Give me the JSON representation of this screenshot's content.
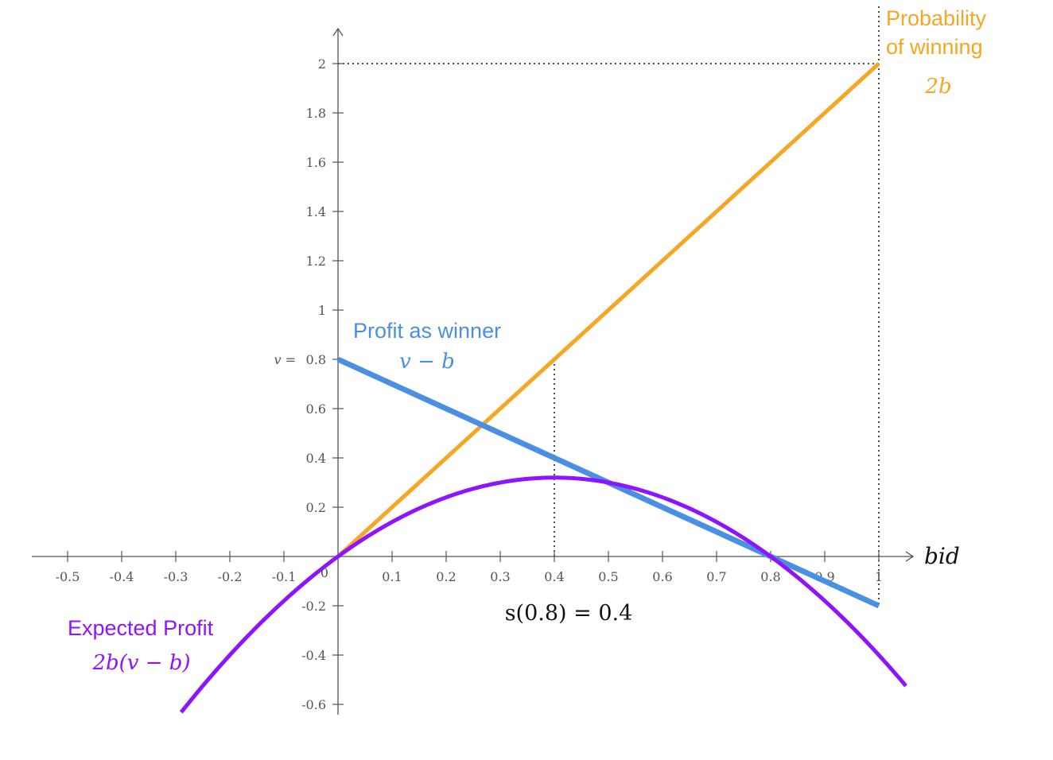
{
  "chart_data": {
    "type": "line",
    "xlabel": "bid",
    "ylabel": "",
    "xlim": [
      -0.5,
      1.0
    ],
    "ylim": [
      -0.6,
      2.0
    ],
    "x_ticks": [
      -0.5,
      -0.4,
      -0.3,
      -0.2,
      -0.1,
      0.1,
      0.2,
      0.3,
      0.4,
      0.5,
      0.6,
      0.7,
      0.8,
      0.9,
      1
    ],
    "y_ticks": [
      -0.6,
      -0.4,
      -0.2,
      0.2,
      0.4,
      0.6,
      1,
      1.2,
      1.4,
      1.6,
      1.8,
      2
    ],
    "origin_label": "0",
    "v_tick_label": "0.8",
    "v_tick_prefix": "v =",
    "v": 0.8,
    "series": [
      {
        "name": "Probability of winning",
        "name_line1": "Probability",
        "name_line2": "of winning",
        "formula": "2b",
        "color": "#f5a623",
        "x": [
          0,
          1
        ],
        "y": [
          0,
          2
        ]
      },
      {
        "name": "Profit as winner",
        "formula": "v − b",
        "color": "#4a90e2",
        "x": [
          0,
          1
        ],
        "y": [
          0.8,
          -0.2
        ]
      },
      {
        "name": "Expected Profit",
        "formula": "2b(v − b)",
        "color": "#9013fe",
        "function": "2*b*(0.8-b)",
        "x_range": [
          -0.29,
          1.05
        ]
      }
    ],
    "annotations": [
      {
        "text": "s(0.8) = 0.4",
        "x": 0.4,
        "y": 0.4
      }
    ],
    "guides": [
      {
        "type": "vertical-dotted",
        "x": 0.4,
        "from_y": 0,
        "to_y": 0.8
      },
      {
        "type": "vertical-dotted",
        "x": 1,
        "from_y": -0.2,
        "to_y": 2.3
      },
      {
        "type": "horizontal-dotted",
        "y": 2,
        "from_x": 0,
        "to_x": 1
      }
    ]
  }
}
